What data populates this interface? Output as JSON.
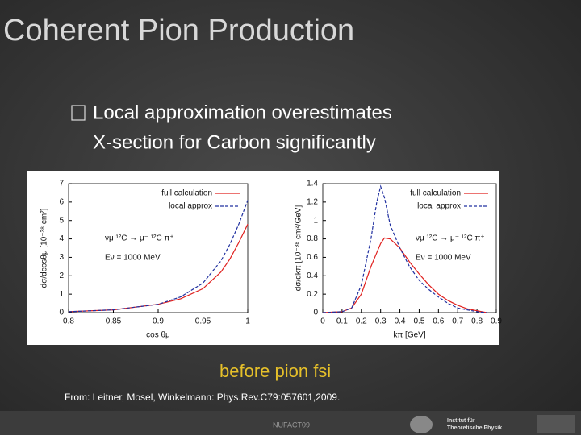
{
  "title": "Coherent Pion Production",
  "bullet": [
    "Local approximation overestimates",
    "X-section for Carbon significantly"
  ],
  "caption": "before pion fsi",
  "citation": "From: Leitner, Mosel, Winkelmann: Phys.Rev.C79:057601,2009.",
  "footer": "NUFACT09",
  "logo": [
    "Institut für",
    "Theoretische Physik"
  ],
  "chart_data": [
    {
      "type": "line",
      "xlabel": "cos θμ",
      "ylabel": "dσ/dcosθμ [10⁻³⁸ cm²]",
      "annotations": [
        "νμ ¹²C → μ⁻ ¹²C π⁺",
        "Eν = 1000 MeV"
      ],
      "x": [
        0.8,
        0.85,
        0.9,
        0.925,
        0.95,
        0.97,
        0.98,
        0.99,
        1
      ],
      "series": [
        {
          "name": "full calculation",
          "color": "#e0201e",
          "dash": false,
          "values": [
            0.05,
            0.15,
            0.45,
            0.75,
            1.3,
            2.2,
            2.9,
            3.8,
            4.8
          ]
        },
        {
          "name": "local approx",
          "color": "#2030a0",
          "dash": true,
          "values": [
            0.05,
            0.15,
            0.45,
            0.85,
            1.6,
            2.8,
            3.7,
            4.8,
            6.1
          ]
        }
      ],
      "xlim": [
        0.8,
        1
      ],
      "xticks": [
        0.8,
        0.85,
        0.9,
        0.95,
        1
      ],
      "ylim": [
        0,
        7
      ],
      "yticks": [
        0,
        1,
        2,
        3,
        4,
        5,
        6,
        7
      ],
      "legend": "upper left"
    },
    {
      "type": "line",
      "xlabel": "kπ [GeV]",
      "ylabel": "dσ/dkπ [10⁻³⁸ cm²/GeV]",
      "annotations": [
        "νμ ¹²C → μ⁻ ¹²C π⁺",
        "Eν = 1000 MeV"
      ],
      "x": [
        0,
        0.1,
        0.15,
        0.2,
        0.25,
        0.28,
        0.3,
        0.32,
        0.35,
        0.4,
        0.45,
        0.5,
        0.55,
        0.6,
        0.65,
        0.7,
        0.75,
        0.8,
        0.85
      ],
      "series": [
        {
          "name": "full calculation",
          "color": "#e0201e",
          "dash": false,
          "values": [
            0,
            0.01,
            0.05,
            0.2,
            0.5,
            0.65,
            0.75,
            0.81,
            0.8,
            0.7,
            0.55,
            0.42,
            0.3,
            0.2,
            0.13,
            0.08,
            0.04,
            0.02,
            0
          ]
        },
        {
          "name": "local approx",
          "color": "#2030a0",
          "dash": true,
          "values": [
            0,
            0.01,
            0.05,
            0.3,
            0.8,
            1.2,
            1.37,
            1.25,
            0.95,
            0.7,
            0.5,
            0.35,
            0.25,
            0.17,
            0.1,
            0.05,
            0.03,
            0.01,
            0
          ]
        }
      ],
      "xlim": [
        0,
        0.9
      ],
      "xticks": [
        0,
        0.1,
        0.2,
        0.3,
        0.4,
        0.5,
        0.6,
        0.7,
        0.8,
        0.9
      ],
      "ylim": [
        0,
        1.4
      ],
      "yticks": [
        0,
        0.2,
        0.4,
        0.6,
        0.8,
        1,
        1.2,
        1.4
      ],
      "legend": "upper right"
    }
  ]
}
